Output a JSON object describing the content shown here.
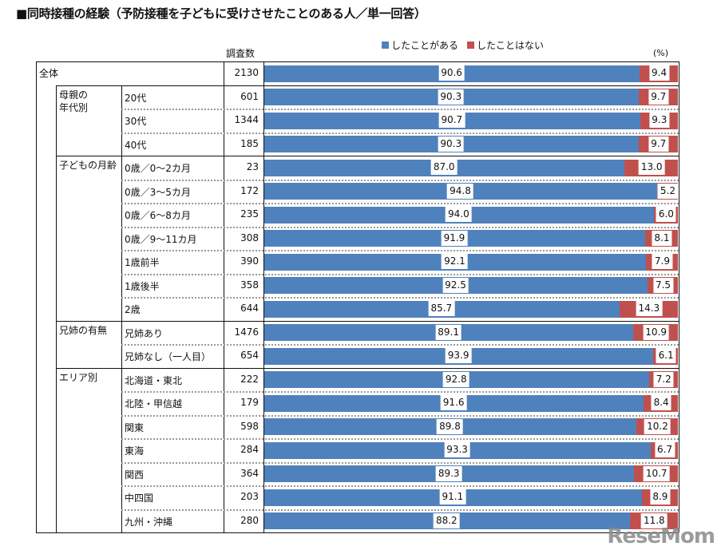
{
  "title": "■同時接種の経験（予防接種を子どもに受けさせたことのある人／単一回答）",
  "count_header": "調査数",
  "unit": "(%)",
  "watermark": "ReseMom",
  "colors": {
    "did": "#4f81bd",
    "not": "#c0504d"
  },
  "chart_data": {
    "type": "bar",
    "orientation": "horizontal",
    "stacked": "100%",
    "xlim": [
      0,
      100
    ],
    "legend_position": "top",
    "series": [
      {
        "name": "したことがある",
        "values": [
          90.6,
          90.3,
          90.7,
          90.3,
          87.0,
          94.8,
          94.0,
          91.9,
          92.1,
          92.5,
          85.7,
          89.1,
          93.9,
          92.8,
          91.6,
          89.8,
          93.3,
          89.3,
          91.1,
          88.2
        ]
      },
      {
        "name": "したことはない",
        "values": [
          9.4,
          9.7,
          9.3,
          9.7,
          13.0,
          5.2,
          6.0,
          8.1,
          7.9,
          7.5,
          14.3,
          10.9,
          6.1,
          7.2,
          8.4,
          10.2,
          6.7,
          10.7,
          8.9,
          11.8
        ]
      }
    ],
    "groups": [
      {
        "label": "全体",
        "rows": [
          {
            "label": "",
            "n": 2130
          }
        ]
      },
      {
        "label": "母親の\n年代別",
        "rows": [
          {
            "label": "20代",
            "n": 601
          },
          {
            "label": "30代",
            "n": 1344
          },
          {
            "label": "40代",
            "n": 185
          }
        ]
      },
      {
        "label": "子どもの月齢",
        "rows": [
          {
            "label": "0歳／0〜2カ月",
            "n": 23
          },
          {
            "label": "0歳／3〜5カ月",
            "n": 172
          },
          {
            "label": "0歳／6〜8カ月",
            "n": 235
          },
          {
            "label": "0歳／9〜11カ月",
            "n": 308
          },
          {
            "label": "1歳前半",
            "n": 390
          },
          {
            "label": "1歳後半",
            "n": 358
          },
          {
            "label": "2歳",
            "n": 644
          }
        ]
      },
      {
        "label": "兄姉の有無",
        "rows": [
          {
            "label": "兄姉あり",
            "n": 1476
          },
          {
            "label": "兄姉なし（一人目）",
            "n": 654
          }
        ]
      },
      {
        "label": "エリア別",
        "rows": [
          {
            "label": "北海道・東北",
            "n": 222
          },
          {
            "label": "北陸・甲信越",
            "n": 179
          },
          {
            "label": "関東",
            "n": 598
          },
          {
            "label": "東海",
            "n": 284
          },
          {
            "label": "関西",
            "n": 364
          },
          {
            "label": "中四国",
            "n": 203
          },
          {
            "label": "九州・沖縄",
            "n": 280
          }
        ]
      }
    ]
  }
}
